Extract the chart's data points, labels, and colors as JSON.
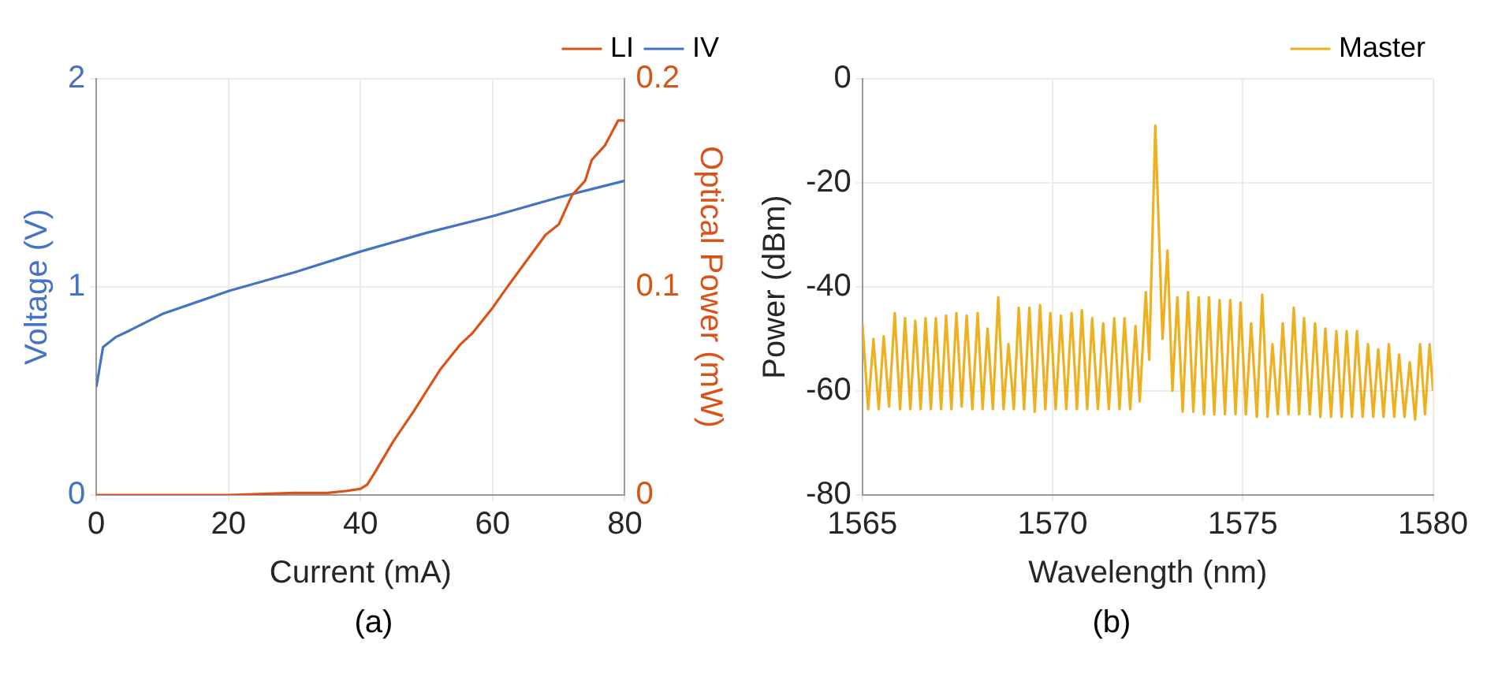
{
  "chart_data": [
    {
      "type": "line",
      "xlabel": "Current (mA)",
      "ylabel": "Voltage (V)",
      "y2label": "Optical Power (mW)",
      "annotations": [
        "(a)"
      ],
      "xlim": [
        0,
        80
      ],
      "xticks": [
        0,
        20,
        40,
        60,
        80
      ],
      "ylim": [
        0,
        2
      ],
      "yticks": [
        0,
        1,
        2
      ],
      "y2lim": [
        0,
        0.2
      ],
      "y2ticks": [
        0,
        0.1,
        0.2
      ],
      "grid": true,
      "legend": "top right",
      "marker": "none",
      "line_style": "solid",
      "series": [
        {
          "name": "LI",
          "color": "#d95319",
          "axis": "y2",
          "x": [
            0,
            10,
            20,
            30,
            35,
            38,
            40,
            41,
            42,
            45,
            48,
            50,
            52,
            55,
            57,
            60,
            62,
            65,
            68,
            70,
            72,
            74,
            75,
            77,
            78,
            79,
            80
          ],
          "values": [
            0,
            0,
            0,
            0.001,
            0.001,
            0.002,
            0.003,
            0.005,
            0.01,
            0.026,
            0.04,
            0.05,
            0.06,
            0.072,
            0.078,
            0.09,
            0.099,
            0.112,
            0.125,
            0.13,
            0.144,
            0.151,
            0.161,
            0.168,
            0.174,
            0.18,
            0.18
          ]
        },
        {
          "name": "IV",
          "color": "#4472c4",
          "axis": "y",
          "x": [
            0,
            1,
            3,
            5,
            10,
            20,
            30,
            40,
            50,
            60,
            70,
            80
          ],
          "values": [
            0.52,
            0.71,
            0.76,
            0.79,
            0.87,
            0.98,
            1.07,
            1.17,
            1.26,
            1.34,
            1.43,
            1.51
          ]
        }
      ]
    },
    {
      "type": "line",
      "xlabel": "Wavelength (nm)",
      "ylabel": "Power (dBm)",
      "annotations": [
        "(b)"
      ],
      "xlim": [
        1565,
        1580
      ],
      "xticks": [
        1565,
        1570,
        1575,
        1580
      ],
      "ylim": [
        -80,
        0
      ],
      "yticks": [
        -80,
        -60,
        -40,
        -20,
        0
      ],
      "grid": true,
      "legend": "top right",
      "marker": "none",
      "line_style": "solid",
      "series": [
        {
          "name": "Master",
          "color": "#edb120",
          "axis": "y",
          "x": [
            1565.0,
            1565.15,
            1565.29,
            1565.43,
            1565.56,
            1565.7,
            1565.85,
            1565.99,
            1566.12,
            1566.26,
            1566.39,
            1566.53,
            1566.66,
            1566.8,
            1566.93,
            1567.07,
            1567.2,
            1567.34,
            1567.47,
            1567.61,
            1567.74,
            1567.89,
            1568.03,
            1568.16,
            1568.29,
            1568.43,
            1568.57,
            1568.71,
            1568.84,
            1568.98,
            1569.11,
            1569.25,
            1569.39,
            1569.53,
            1569.67,
            1569.81,
            1569.94,
            1570.08,
            1570.22,
            1570.36,
            1570.5,
            1570.64,
            1570.77,
            1570.91,
            1571.04,
            1571.19,
            1571.33,
            1571.48,
            1571.62,
            1571.76,
            1571.89,
            1572.04,
            1572.18,
            1572.29,
            1572.45,
            1572.54,
            1572.7,
            1572.89,
            1573.02,
            1573.15,
            1573.28,
            1573.42,
            1573.56,
            1573.7,
            1573.84,
            1573.98,
            1574.11,
            1574.25,
            1574.39,
            1574.53,
            1574.67,
            1574.81,
            1574.94,
            1575.08,
            1575.22,
            1575.37,
            1575.51,
            1575.65,
            1575.78,
            1575.92,
            1576.05,
            1576.2,
            1576.34,
            1576.48,
            1576.61,
            1576.76,
            1576.9,
            1577.04,
            1577.17,
            1577.32,
            1577.46,
            1577.6,
            1577.73,
            1577.87,
            1578.0,
            1578.15,
            1578.29,
            1578.43,
            1578.56,
            1578.7,
            1578.84,
            1578.98,
            1579.11,
            1579.25,
            1579.39,
            1579.53,
            1579.66,
            1579.79,
            1579.91,
            1580.0
          ],
          "values": [
            -47,
            -63.5,
            -50,
            -63.5,
            -49.5,
            -63,
            -45,
            -63.5,
            -46,
            -63.5,
            -46.5,
            -63.5,
            -46,
            -63.5,
            -46,
            -63.5,
            -45.5,
            -63.5,
            -45,
            -63,
            -45.5,
            -63.5,
            -45,
            -63.5,
            -48,
            -63.5,
            -42,
            -63.5,
            -51,
            -63.5,
            -44,
            -63.5,
            -44,
            -64,
            -43.5,
            -63.5,
            -45,
            -63.5,
            -45.5,
            -63.5,
            -45,
            -63.5,
            -44.5,
            -63.5,
            -46,
            -63.5,
            -47,
            -63.5,
            -46,
            -63.5,
            -46,
            -63.5,
            -47.5,
            -62,
            -41,
            -54,
            -9,
            -50,
            -33,
            -60,
            -42,
            -64,
            -41,
            -64,
            -42,
            -64.5,
            -42,
            -64.5,
            -42.5,
            -64.5,
            -42.5,
            -64.5,
            -43,
            -64.5,
            -47,
            -65,
            -41.5,
            -65,
            -51,
            -64.5,
            -47,
            -64.5,
            -44,
            -64.5,
            -46,
            -64.5,
            -47,
            -65,
            -48,
            -65,
            -48.5,
            -65,
            -48.5,
            -65,
            -48.5,
            -65,
            -51,
            -65,
            -52,
            -65,
            -51,
            -65,
            -53,
            -65,
            -54.5,
            -65.5,
            -51,
            -64.5,
            -51,
            -60
          ]
        }
      ]
    }
  ]
}
